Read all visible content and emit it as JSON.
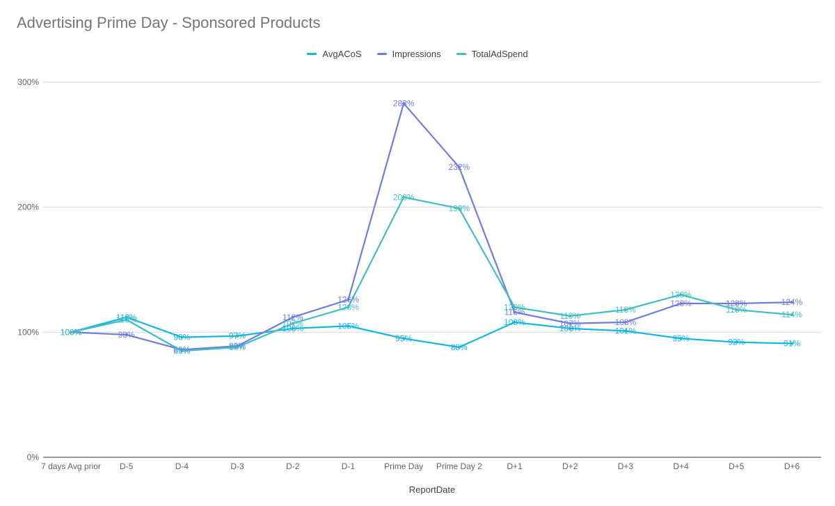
{
  "chart_data": {
    "type": "line",
    "title": "Advertising Prime Day - Sponsored Products",
    "xlabel": "ReportDate",
    "ylabel": "",
    "ylim": [
      0,
      300
    ],
    "y_ticks": [
      0,
      100,
      200,
      300
    ],
    "y_tick_labels": [
      "0%",
      "100%",
      "200%",
      "300%"
    ],
    "grid": true,
    "legend_position": "top-center",
    "categories": [
      "7 days Avg prior",
      "D-5",
      "D-4",
      "D-3",
      "D-2",
      "D-1",
      "Prime Day",
      "Prime Day 2",
      "D+1",
      "D+2",
      "D+3",
      "D+4",
      "D+5",
      "D+6"
    ],
    "series": [
      {
        "name": "AvgACoS",
        "color": "#12b5e6",
        "values": [
          100,
          112,
          96,
          97,
          103,
          105,
          95,
          88,
          108,
          103,
          101,
          95,
          92,
          91
        ],
        "labels": [
          "100%",
          "112%",
          "96%",
          "97%",
          "103%",
          "105%",
          "95%",
          "88%",
          "108%",
          "103%",
          "101%",
          "95%",
          "92%",
          "91%"
        ]
      },
      {
        "name": "Impressions",
        "color": "#6f7be3",
        "values": [
          100,
          98,
          86,
          89,
          112,
          126,
          283,
          232,
          116,
          107,
          108,
          123,
          123,
          124
        ],
        "labels": [
          "100%",
          "98%",
          "86%",
          "89%",
          "112%",
          "126%",
          "283%",
          "232%",
          "116%",
          "107%",
          "108%",
          "123%",
          "123%",
          "124%"
        ]
      },
      {
        "name": "TotalAdSpend",
        "color": "#3fbec2",
        "values": [
          100,
          110,
          85,
          88,
          107,
          120,
          208,
          199,
          120,
          113,
          118,
          130,
          118,
          114
        ],
        "labels": [
          "100%",
          "110%",
          "85%",
          "88%",
          "107%",
          "120%",
          "208%",
          "199%",
          "120%",
          "113%",
          "118%",
          "130%",
          "118%",
          "114%"
        ]
      }
    ]
  }
}
